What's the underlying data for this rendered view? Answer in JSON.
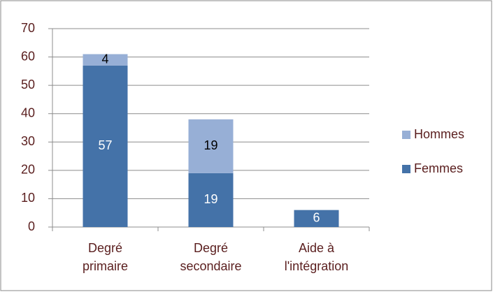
{
  "chart_data": {
    "type": "stacked_bar",
    "categories": [
      [
        "Degré",
        "primaire"
      ],
      [
        "Degré",
        "secondaire"
      ],
      [
        "Aide à",
        "l'intégration"
      ]
    ],
    "series": [
      {
        "name": "Femmes",
        "color": "#4472a8",
        "label_color": "#ffffff",
        "values": [
          57,
          19,
          6
        ]
      },
      {
        "name": "Hommes",
        "color": "#97afd6",
        "label_color": "#000000",
        "values": [
          4,
          19,
          null
        ]
      }
    ],
    "ylim": [
      0,
      70
    ],
    "yticks": [
      0,
      10,
      20,
      30,
      40,
      50,
      60,
      70
    ],
    "grid": true,
    "legend": "right"
  }
}
